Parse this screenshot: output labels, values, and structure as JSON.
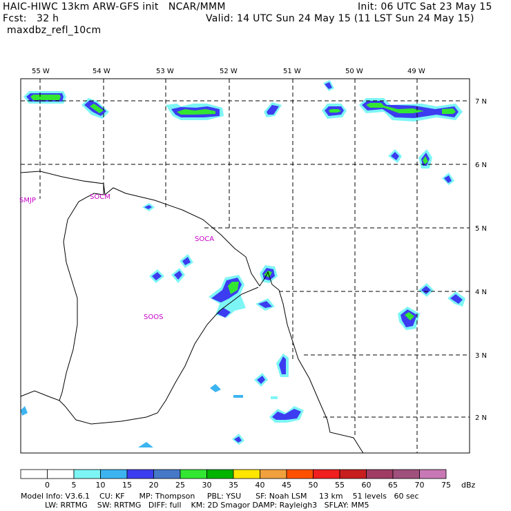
{
  "header": {
    "left_line1": "HAIC-HIWC 13km ARW-GFS init   NCAR/MMM",
    "left_line2": "Fcst:   32 h",
    "left_line3": "maxdbz_refl_10cm",
    "right_line1": "Init: 06 UTC Sat 23 May 15",
    "right_line2": "Valid: 14 UTC Sun 24 May 15 (11 LST Sun 24 May 15)"
  },
  "map": {
    "lon_labels": [
      "55 W",
      "54 W",
      "53 W",
      "52 W",
      "51 W",
      "50 W",
      "49 W"
    ],
    "lat_labels": [
      "7 N",
      "6 N",
      "5 N",
      "4 N",
      "3 N",
      "2 N"
    ],
    "stations": [
      "SMJP",
      "SOCM",
      "SOCA",
      "SOOS"
    ],
    "colors": {
      "border": "#000000",
      "grid": "#000000",
      "station": "#c800c8"
    }
  },
  "colorbar": {
    "ticks": [
      "0",
      "5",
      "10",
      "15",
      "20",
      "25",
      "30",
      "35",
      "40",
      "45",
      "50",
      "55",
      "60",
      "65",
      "70",
      "75"
    ],
    "unit": "dBz",
    "colors": [
      "#ffffff",
      "#ffffff",
      "#7df5f5",
      "#3cb4f0",
      "#3c3cf0",
      "#4678c8",
      "#32e632",
      "#00b400",
      "#ffe600",
      "#f0a03c",
      "#ff5000",
      "#f01e1e",
      "#c81e1e",
      "#a03c64",
      "#a0507d",
      "#c878b4"
    ]
  },
  "footer": {
    "line1": "Model Info: V3.6.1    CU: KF      MP: Thompson     PBL: YSU      SF: Noah LSM     13 km    51 levels   60 sec",
    "line2": "          LW: RRTMG    SW: RRTMG   DIFF: full    KM: 2D Smagor DAMP: Rayleigh3   SFLAY: MM5"
  }
}
